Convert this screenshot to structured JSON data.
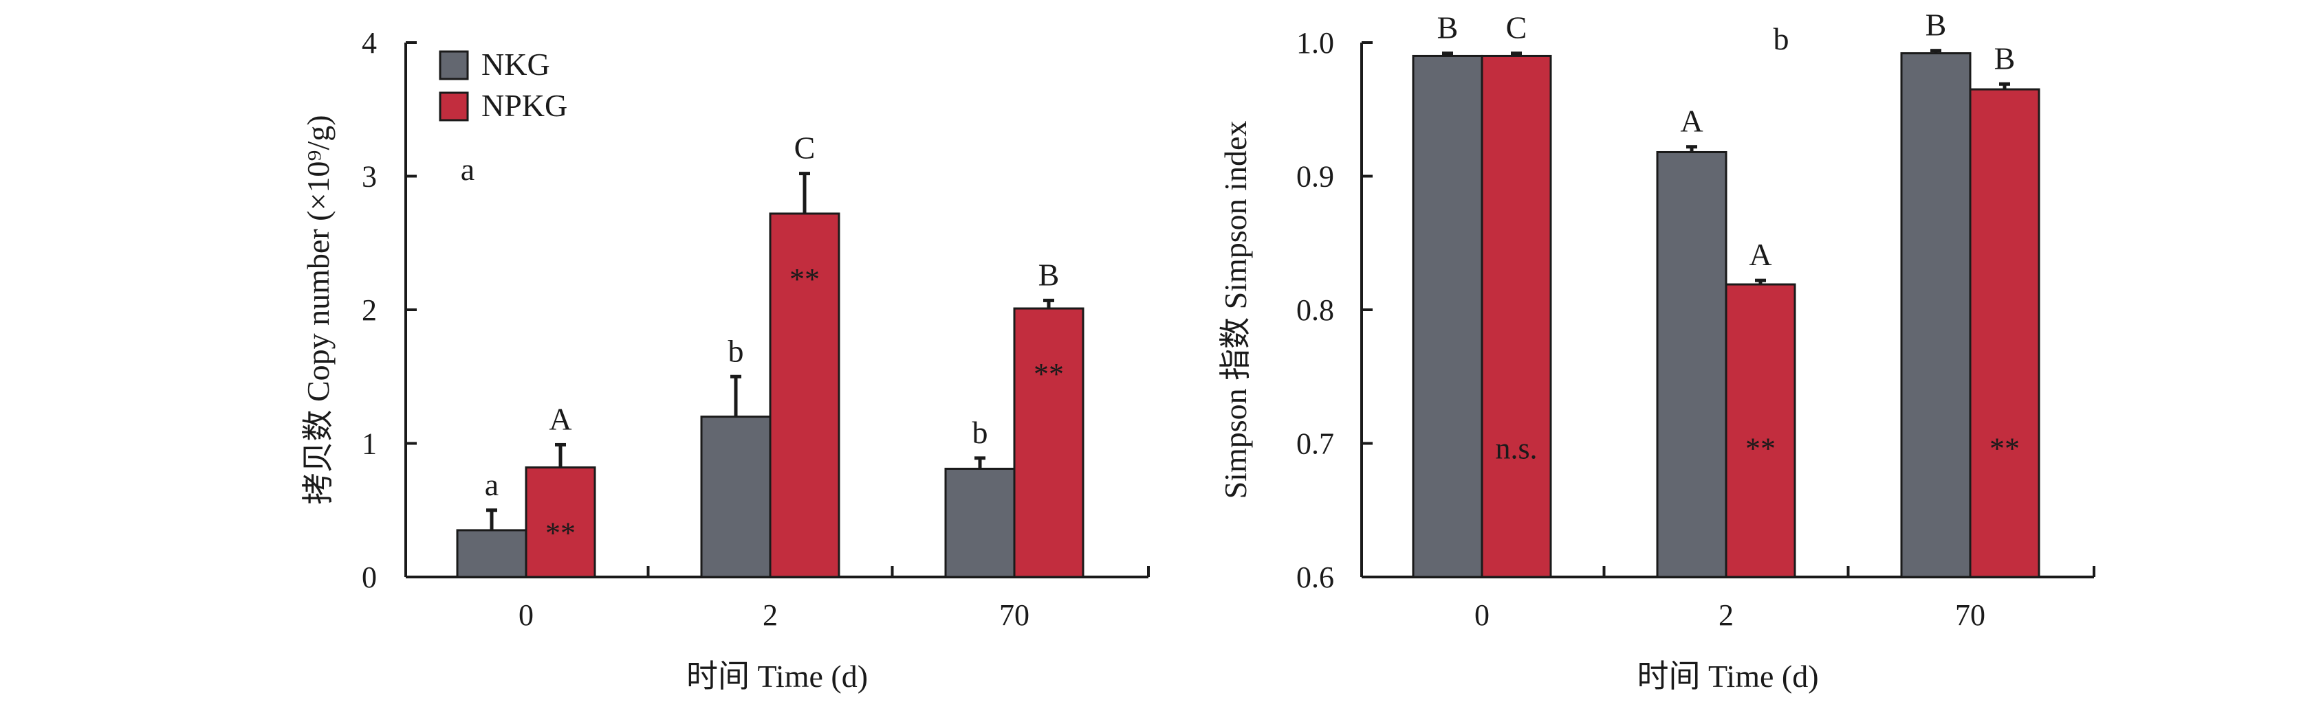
{
  "chart_data": [
    {
      "type": "bar",
      "panel_label": "a",
      "categories": [
        "0",
        "2",
        "70"
      ],
      "series": [
        {
          "name": "NKG",
          "color": "#636770",
          "values": [
            0.35,
            1.2,
            0.81
          ],
          "errors": [
            0.15,
            0.3,
            0.08
          ],
          "letters": [
            "a",
            "b",
            "b"
          ],
          "inner_labels": [
            "",
            "",
            ""
          ]
        },
        {
          "name": "NPKG",
          "color": "#c22d3e",
          "values": [
            0.82,
            2.72,
            2.01
          ],
          "errors": [
            0.17,
            0.3,
            0.06
          ],
          "letters": [
            "A",
            "C",
            "B"
          ],
          "inner_labels": [
            "**",
            "**",
            "**"
          ]
        }
      ],
      "ylim": [
        0,
        4
      ],
      "yticks": [
        "0",
        "1",
        "2",
        "3",
        "4"
      ],
      "xlabel": "时间 Time (d)",
      "ylabel": "拷贝数 Copy number (×10⁹/g)",
      "legend": "top-left"
    },
    {
      "type": "bar",
      "panel_label": "b",
      "categories": [
        "0",
        "2",
        "70"
      ],
      "series": [
        {
          "name": "NKG",
          "color": "#636770",
          "values": [
            0.99,
            0.918,
            0.992
          ],
          "errors": [
            0.002,
            0.004,
            0.002
          ],
          "letters": [
            "B",
            "A",
            "B"
          ],
          "inner_labels": [
            "",
            "",
            ""
          ]
        },
        {
          "name": "NPKG",
          "color": "#c22d3e",
          "values": [
            0.99,
            0.819,
            0.965
          ],
          "errors": [
            0.002,
            0.003,
            0.004
          ],
          "letters": [
            "C",
            "A",
            "B"
          ],
          "inner_labels": [
            "n.s.",
            "**",
            "**"
          ]
        }
      ],
      "ylim": [
        0.6,
        1.0
      ],
      "yticks": [
        "0.6",
        "0.7",
        "0.8",
        "0.9",
        "1.0"
      ],
      "xlabel": "时间 Time (d)",
      "ylabel": "Simpson 指数 Simpson index"
    }
  ]
}
